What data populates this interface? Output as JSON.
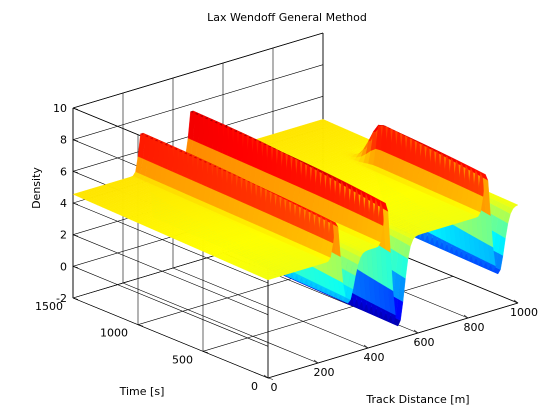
{
  "chart_data": {
    "type": "surface",
    "title": "Lax Wendoff General Method",
    "xlabel": "Track Distance [m]",
    "ylabel": "Time [s]",
    "zlabel": "Density",
    "xlim": [
      0,
      1000
    ],
    "ylim": [
      0,
      1500
    ],
    "zlim": [
      -2,
      10
    ],
    "x_ticks": [
      "0",
      "200",
      "400",
      "600",
      "800",
      "1000"
    ],
    "y_ticks": [
      "0",
      "500",
      "1000",
      "1500"
    ],
    "z_ticks": [
      "-2",
      "0",
      "2",
      "4",
      "6",
      "8",
      "10"
    ],
    "grid": true,
    "colormap": "jet",
    "colors": [
      "#00008f",
      "#0000ff",
      "#00ffff",
      "#ffff00",
      "#ff0000",
      "#800000"
    ],
    "features": [
      {
        "x": 300,
        "time_range": [
          0,
          1500
        ],
        "peak": 7.0,
        "trough": 1.2
      },
      {
        "x": 500,
        "time_range": [
          0,
          1500
        ],
        "peak": 7.5,
        "trough": -1.2
      },
      {
        "x": 900,
        "time_range": [
          0,
          800
        ],
        "peak": 7.3,
        "trough": 0.2
      }
    ],
    "base_density": 4.2
  }
}
